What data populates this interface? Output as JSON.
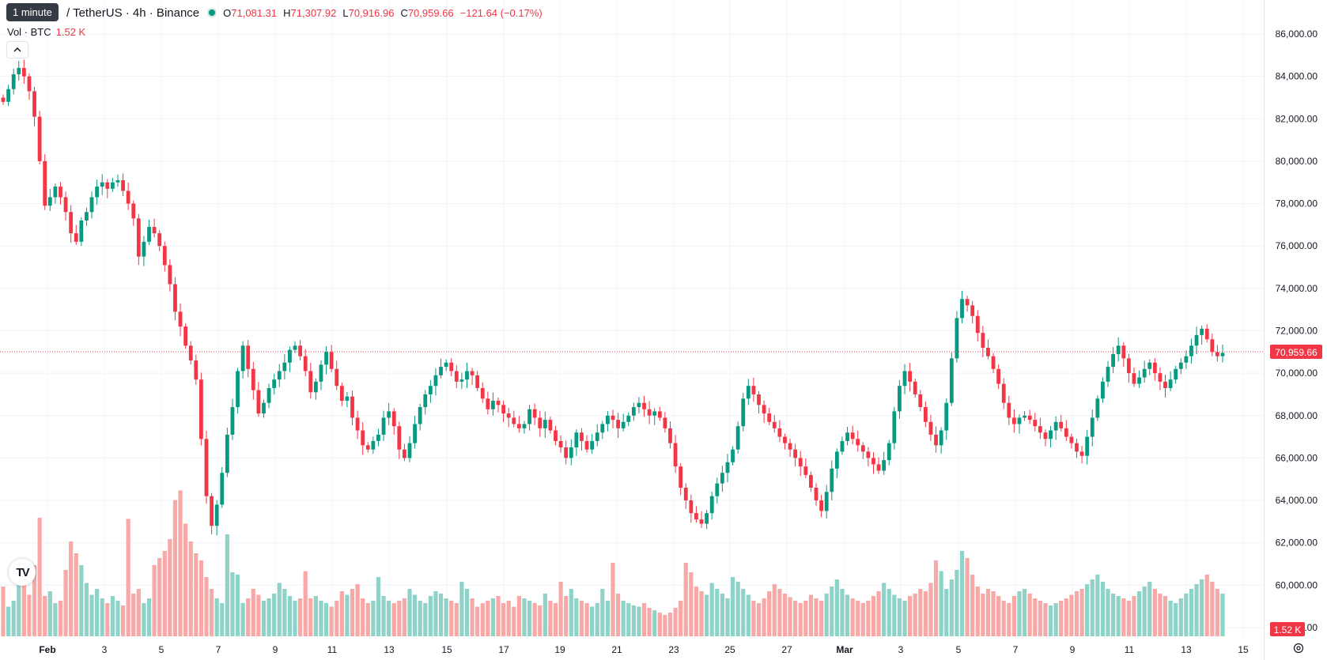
{
  "tooltip": "1 minute",
  "header": {
    "symbol": "/ TetherUS · 4h · Binance",
    "open_label": "O",
    "open": "71,081.31",
    "high_label": "H",
    "high": "71,307.92",
    "low_label": "L",
    "low": "70,916.96",
    "close_label": "C",
    "close": "70,959.66",
    "change": "−121.64 (−0.17%)"
  },
  "volume": {
    "label": "Vol · BTC",
    "value": "1.52 K"
  },
  "last_price_badge": "70,959.66",
  "volume_badge": "1.52 K",
  "logo_text": "TV",
  "colors": {
    "up": "#089981",
    "down": "#f23645",
    "up_volume": "#8fd3c8",
    "down_volume": "#f7a9a7",
    "grid": "#f0f3fa"
  },
  "icons": {
    "collapse": "chevron-up-icon",
    "settings": "gear-icon",
    "logo": "tradingview-logo-icon"
  },
  "chart_data": {
    "type": "candlestick",
    "y_ticks": [
      "86,000.00",
      "84,000.00",
      "82,000.00",
      "80,000.00",
      "78,000.00",
      "76,000.00",
      "74,000.00",
      "72,000.00",
      "70,000.00",
      "68,000.00",
      "66,000.00",
      "64,000.00",
      "62,000.00",
      "60,000.00",
      "58,000.00"
    ],
    "x_ticks": [
      "Feb",
      "3",
      "5",
      "7",
      "9",
      "11",
      "13",
      "15",
      "17",
      "19",
      "21",
      "23",
      "25",
      "27",
      "Mar",
      "3",
      "5",
      "7",
      "9",
      "11",
      "13",
      "15"
    ],
    "ylim": [
      58000,
      86500
    ],
    "last_price": 70959.66,
    "series_close": [
      82800,
      83400,
      84100,
      84400,
      84000,
      83300,
      82100,
      80000,
      77900,
      78300,
      78800,
      78300,
      77600,
      76600,
      76200,
      77200,
      77600,
      78300,
      78800,
      79000,
      78700,
      79000,
      79100,
      78600,
      78000,
      77300,
      75500,
      76200,
      76900,
      76600,
      76000,
      75100,
      74200,
      72900,
      72200,
      71300,
      70600,
      69700,
      66900,
      64200,
      62800,
      63800,
      65300,
      67100,
      68400,
      70100,
      71300,
      70200,
      69200,
      68100,
      68600,
      69300,
      69700,
      70100,
      70500,
      71100,
      71300,
      70800,
      70100,
      69100,
      69600,
      70400,
      71000,
      70200,
      69400,
      68700,
      68900,
      67900,
      67300,
      66600,
      66400,
      66800,
      67100,
      67900,
      68200,
      67500,
      66400,
      66000,
      66700,
      67600,
      68400,
      69000,
      69400,
      69900,
      70300,
      70500,
      70100,
      69600,
      69700,
      70100,
      69900,
      69300,
      68800,
      68300,
      68700,
      68500,
      68100,
      67900,
      67600,
      67400,
      67600,
      68300,
      67900,
      67400,
      67800,
      67300,
      66800,
      66500,
      66000,
      66500,
      67200,
      66800,
      66400,
      66800,
      67200,
      67600,
      68000,
      67800,
      67400,
      67700,
      68000,
      68400,
      68600,
      68300,
      68000,
      68200,
      67900,
      67400,
      66700,
      65600,
      64600,
      64000,
      63400,
      63100,
      62900,
      63400,
      64200,
      64800,
      65300,
      65800,
      66400,
      67500,
      68800,
      69400,
      69000,
      68500,
      68100,
      67700,
      67400,
      67000,
      66700,
      66400,
      66000,
      65600,
      65200,
      64600,
      64000,
      63500,
      64400,
      65500,
      66300,
      66800,
      67200,
      66900,
      66600,
      66300,
      66000,
      65700,
      65400,
      65900,
      66700,
      68200,
      69400,
      70100,
      69600,
      69000,
      68400,
      67700,
      67100,
      66600,
      67300,
      68600,
      70700,
      72600,
      73500,
      73200,
      72700,
      71900,
      71200,
      70800,
      70200,
      69500,
      68600,
      67900,
      67600,
      67900,
      68000,
      67800,
      67500,
      67200,
      66900,
      67300,
      67700,
      67400,
      67000,
      66700,
      66300,
      66100,
      67000,
      67900,
      68800,
      69600,
      70300,
      70900,
      71300,
      70700,
      70000,
      69500,
      69800,
      70200,
      70500,
      70000,
      69600,
      69300,
      69700,
      70200,
      70500,
      70800,
      71300,
      71800,
      72100,
      71600,
      71000,
      70800,
      70959.66
    ],
    "volume_values": [
      0.42,
      0.25,
      0.3,
      0.45,
      0.55,
      0.35,
      0.6,
      1.0,
      0.34,
      0.38,
      0.28,
      0.3,
      0.56,
      0.8,
      0.7,
      0.6,
      0.45,
      0.35,
      0.4,
      0.32,
      0.28,
      0.34,
      0.3,
      0.26,
      0.99,
      0.36,
      0.4,
      0.28,
      0.32,
      0.6,
      0.66,
      0.72,
      0.82,
      1.15,
      1.23,
      0.95,
      0.8,
      0.7,
      0.64,
      0.5,
      0.4,
      0.32,
      0.28,
      0.86,
      0.54,
      0.52,
      0.28,
      0.32,
      0.4,
      0.35,
      0.3,
      0.32,
      0.36,
      0.45,
      0.4,
      0.34,
      0.3,
      0.32,
      0.55,
      0.32,
      0.34,
      0.3,
      0.28,
      0.25,
      0.3,
      0.38,
      0.35,
      0.4,
      0.44,
      0.32,
      0.28,
      0.3,
      0.5,
      0.34,
      0.3,
      0.28,
      0.3,
      0.32,
      0.4,
      0.35,
      0.3,
      0.28,
      0.34,
      0.38,
      0.36,
      0.32,
      0.3,
      0.28,
      0.46,
      0.4,
      0.32,
      0.25,
      0.28,
      0.3,
      0.32,
      0.34,
      0.28,
      0.3,
      0.25,
      0.34,
      0.32,
      0.3,
      0.28,
      0.26,
      0.36,
      0.3,
      0.28,
      0.46,
      0.34,
      0.4,
      0.32,
      0.3,
      0.28,
      0.25,
      0.28,
      0.4,
      0.3,
      0.62,
      0.36,
      0.3,
      0.28,
      0.26,
      0.25,
      0.28,
      0.24,
      0.22,
      0.2,
      0.18,
      0.2,
      0.24,
      0.3,
      0.62,
      0.54,
      0.42,
      0.38,
      0.35,
      0.45,
      0.4,
      0.36,
      0.32,
      0.5,
      0.46,
      0.4,
      0.35,
      0.3,
      0.28,
      0.32,
      0.38,
      0.44,
      0.4,
      0.36,
      0.33,
      0.3,
      0.28,
      0.3,
      0.35,
      0.32,
      0.3,
      0.36,
      0.42,
      0.48,
      0.4,
      0.35,
      0.32,
      0.3,
      0.28,
      0.3,
      0.34,
      0.38,
      0.45,
      0.4,
      0.35,
      0.32,
      0.3,
      0.34,
      0.36,
      0.4,
      0.38,
      0.45,
      0.64,
      0.55,
      0.4,
      0.48,
      0.56,
      0.72,
      0.66,
      0.52,
      0.42,
      0.36,
      0.4,
      0.38,
      0.34,
      0.3,
      0.28,
      0.34,
      0.38,
      0.4,
      0.36,
      0.32,
      0.3,
      0.28,
      0.26,
      0.28,
      0.3,
      0.32,
      0.35,
      0.38,
      0.4,
      0.44,
      0.48,
      0.52,
      0.46,
      0.4,
      0.36,
      0.34,
      0.32,
      0.3,
      0.34,
      0.38,
      0.42,
      0.46,
      0.4,
      0.36,
      0.34,
      0.3,
      0.28,
      0.32,
      0.36,
      0.4,
      0.44,
      0.48,
      0.52,
      0.46,
      0.4,
      0.36,
      0.3,
      0.25
    ]
  }
}
